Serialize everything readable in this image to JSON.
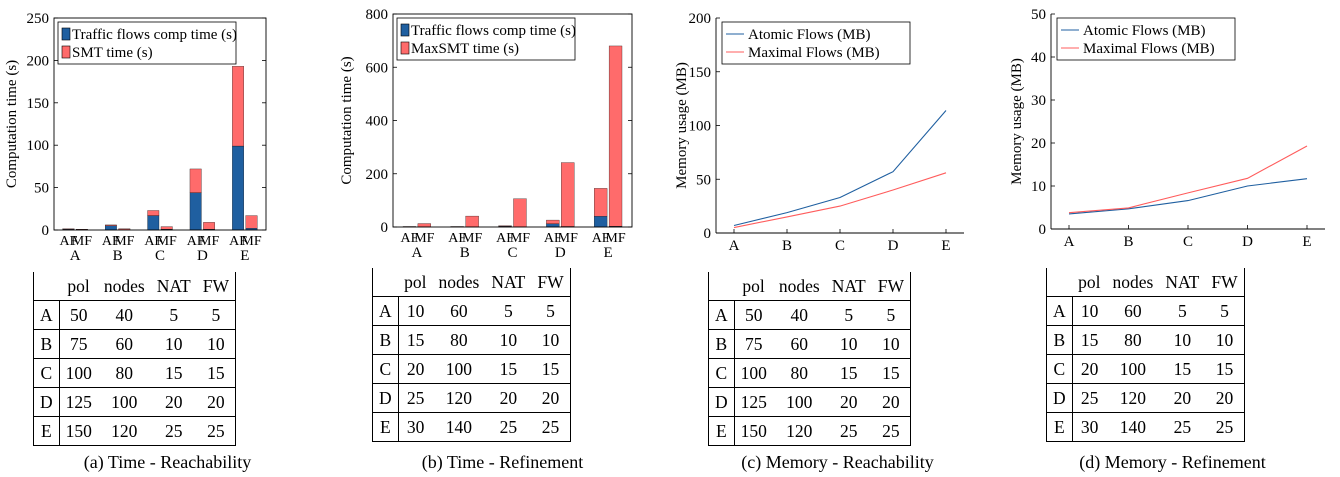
{
  "panels": [
    {
      "id": "a",
      "caption": "(a) Time - Reachability",
      "table": {
        "columns": [
          "",
          "pol",
          "nodes",
          "NAT",
          "FW"
        ],
        "rows": [
          [
            "A",
            "50",
            "40",
            "5",
            "5"
          ],
          [
            "B",
            "75",
            "60",
            "10",
            "10"
          ],
          [
            "C",
            "100",
            "80",
            "15",
            "15"
          ],
          [
            "D",
            "125",
            "100",
            "20",
            "20"
          ],
          [
            "E",
            "150",
            "120",
            "25",
            "25"
          ]
        ]
      }
    },
    {
      "id": "b",
      "caption": "(b) Time - Refinement",
      "table": {
        "columns": [
          "",
          "pol",
          "nodes",
          "NAT",
          "FW"
        ],
        "rows": [
          [
            "A",
            "10",
            "60",
            "5",
            "5"
          ],
          [
            "B",
            "15",
            "80",
            "10",
            "10"
          ],
          [
            "C",
            "20",
            "100",
            "15",
            "15"
          ],
          [
            "D",
            "25",
            "120",
            "20",
            "20"
          ],
          [
            "E",
            "30",
            "140",
            "25",
            "25"
          ]
        ]
      }
    },
    {
      "id": "c",
      "caption": "(c) Memory - Reachability",
      "table": {
        "columns": [
          "",
          "pol",
          "nodes",
          "NAT",
          "FW"
        ],
        "rows": [
          [
            "A",
            "50",
            "40",
            "5",
            "5"
          ],
          [
            "B",
            "75",
            "60",
            "10",
            "10"
          ],
          [
            "C",
            "100",
            "80",
            "15",
            "15"
          ],
          [
            "D",
            "125",
            "100",
            "20",
            "20"
          ],
          [
            "E",
            "150",
            "120",
            "25",
            "25"
          ]
        ]
      }
    },
    {
      "id": "d",
      "caption": "(d) Memory - Refinement",
      "table": {
        "columns": [
          "",
          "pol",
          "nodes",
          "NAT",
          "FW"
        ],
        "rows": [
          [
            "A",
            "10",
            "60",
            "5",
            "5"
          ],
          [
            "B",
            "15",
            "80",
            "10",
            "10"
          ],
          [
            "C",
            "20",
            "100",
            "15",
            "15"
          ],
          [
            "D",
            "25",
            "120",
            "20",
            "20"
          ],
          [
            "E",
            "30",
            "140",
            "25",
            "25"
          ]
        ]
      }
    }
  ],
  "chart_data": [
    {
      "type": "bar",
      "stacked": true,
      "ylabel": "Computation time (s)",
      "ylim": [
        0,
        250
      ],
      "yticks": [
        0,
        50,
        100,
        150,
        200,
        250
      ],
      "categories": [
        "A",
        "B",
        "C",
        "D",
        "E"
      ],
      "subcategories": [
        "AF",
        "MF"
      ],
      "legend_position": "top-left",
      "series": [
        {
          "name": "Traffic flows comp time (s)",
          "color": "#1f5fa0",
          "AF": [
            1,
            5,
            17,
            44,
            99
          ],
          "MF": [
            0.5,
            0.5,
            1,
            1,
            2
          ]
        },
        {
          "name": "SMT time (s)",
          "color": "#ff6b6b",
          "AF": [
            0.5,
            1,
            6,
            28,
            94
          ],
          "MF": [
            0.5,
            1,
            3,
            8,
            15
          ]
        }
      ]
    },
    {
      "type": "bar",
      "stacked": true,
      "ylabel": "Computation time (s)",
      "ylim": [
        0,
        800
      ],
      "yticks": [
        0,
        200,
        400,
        600,
        800
      ],
      "categories": [
        "A",
        "B",
        "C",
        "D",
        "E"
      ],
      "subcategories": [
        "AF",
        "MF"
      ],
      "legend_position": "top-left",
      "series": [
        {
          "name": "Traffic flows comp time (s)",
          "color": "#1f5fa0",
          "AF": [
            1,
            1,
            3,
            12,
            40
          ],
          "MF": [
            1,
            1,
            1,
            2,
            3
          ]
        },
        {
          "name": "MaxSMT time (s)",
          "color": "#ff6b6b",
          "AF": [
            1,
            1,
            2,
            14,
            105
          ],
          "MF": [
            12,
            40,
            105,
            240,
            677
          ]
        }
      ]
    },
    {
      "type": "line",
      "ylabel": "Memory usage (MB)",
      "ylim": [
        0,
        200
      ],
      "yticks": [
        0,
        50,
        100,
        150,
        200
      ],
      "x": [
        "A",
        "B",
        "C",
        "D",
        "E"
      ],
      "legend_position": "top-left",
      "series": [
        {
          "name": "Atomic Flows (MB)",
          "color": "#1f5fa0",
          "values": [
            7,
            19,
            33,
            57,
            114
          ]
        },
        {
          "name": "Maximal Flows (MB)",
          "color": "#ff5c5c",
          "values": [
            5,
            15,
            25,
            40,
            56
          ]
        }
      ]
    },
    {
      "type": "line",
      "ylabel": "Memory usage (MB)",
      "ylim": [
        0,
        50
      ],
      "yticks": [
        0,
        10,
        20,
        30,
        40,
        50
      ],
      "x": [
        "A",
        "B",
        "C",
        "D",
        "E"
      ],
      "legend_position": "top-left",
      "series": [
        {
          "name": "Atomic Flows (MB)",
          "color": "#1f5fa0",
          "values": [
            3.5,
            4.7,
            6.6,
            10,
            11.7
          ]
        },
        {
          "name": "Maximal Flows (MB)",
          "color": "#ff5c5c",
          "values": [
            3.8,
            4.9,
            8.4,
            11.8,
            19.3
          ]
        }
      ]
    }
  ]
}
